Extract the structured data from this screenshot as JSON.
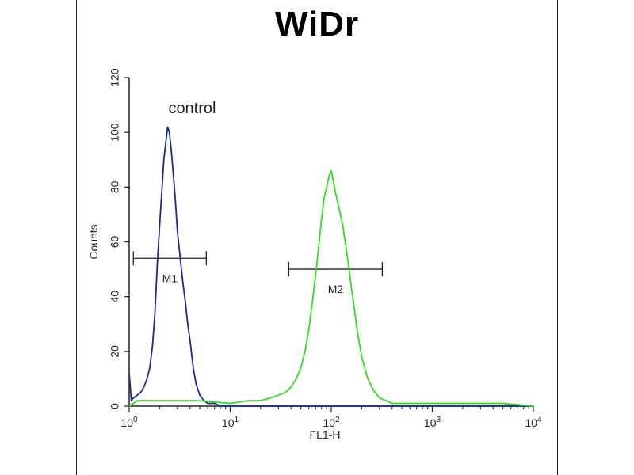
{
  "chart_data": {
    "type": "line",
    "title": "WiDr",
    "xlabel": "FL1-H",
    "ylabel": "Counts",
    "xscale": "log",
    "xlim": [
      1,
      10000
    ],
    "ylim": [
      0,
      120
    ],
    "x_ticks": [
      {
        "value": 1,
        "base": "10",
        "exp": "0"
      },
      {
        "value": 10,
        "base": "10",
        "exp": "1"
      },
      {
        "value": 100,
        "base": "10",
        "exp": "2"
      },
      {
        "value": 1000,
        "base": "10",
        "exp": "3"
      },
      {
        "value": 10000,
        "base": "10",
        "exp": "4"
      }
    ],
    "y_ticks": [
      "0",
      "20",
      "40",
      "60",
      "80",
      "100",
      "120"
    ],
    "grid": false,
    "annotations": [
      {
        "text": "control",
        "x": 4.2,
        "y": 107
      }
    ],
    "markers": [
      {
        "label": "M1",
        "x_start": 1.1,
        "x_end": 5.8,
        "y": 54
      },
      {
        "label": "M2",
        "x_start": 38,
        "x_end": 320,
        "y": 50
      }
    ],
    "series": [
      {
        "color": "#1c2a8c",
        "x": [
          1,
          1.05,
          1.1,
          1.2,
          1.3,
          1.4,
          1.5,
          1.6,
          1.7,
          1.8,
          1.9,
          2.0,
          2.1,
          2.2,
          2.3,
          2.4,
          2.5,
          2.6,
          2.7,
          2.8,
          2.9,
          3.0,
          3.2,
          3.4,
          3.6,
          3.8,
          4.0,
          4.3,
          4.6,
          5.0,
          5.5,
          6.0,
          7,
          8,
          10,
          15,
          30,
          100,
          1000,
          10000
        ],
        "y": [
          12,
          2,
          3,
          4,
          5,
          7,
          10,
          14,
          22,
          34,
          52,
          66,
          78,
          90,
          96,
          102,
          100,
          94,
          87,
          80,
          72,
          64,
          54,
          45,
          38,
          30,
          24,
          14,
          8,
          4,
          2,
          1,
          1,
          0,
          0,
          0,
          0,
          0,
          0,
          0
        ]
      },
      {
        "color": "#33dd22",
        "x": [
          1,
          1.2,
          2,
          5,
          10,
          15,
          20,
          25,
          30,
          35,
          40,
          45,
          50,
          55,
          60,
          65,
          70,
          75,
          80,
          85,
          90,
          95,
          100,
          105,
          110,
          120,
          130,
          140,
          150,
          160,
          170,
          180,
          200,
          230,
          260,
          300,
          400,
          600,
          1000,
          5000,
          10000
        ],
        "y": [
          0,
          2,
          2,
          2,
          1,
          2,
          2,
          3,
          4,
          5,
          7,
          10,
          14,
          20,
          28,
          38,
          48,
          58,
          68,
          76,
          80,
          84,
          86,
          82,
          78,
          72,
          66,
          58,
          50,
          42,
          35,
          28,
          18,
          10,
          6,
          3,
          1,
          1,
          1,
          1,
          0
        ]
      }
    ]
  },
  "footer": {
    "caption": ""
  }
}
